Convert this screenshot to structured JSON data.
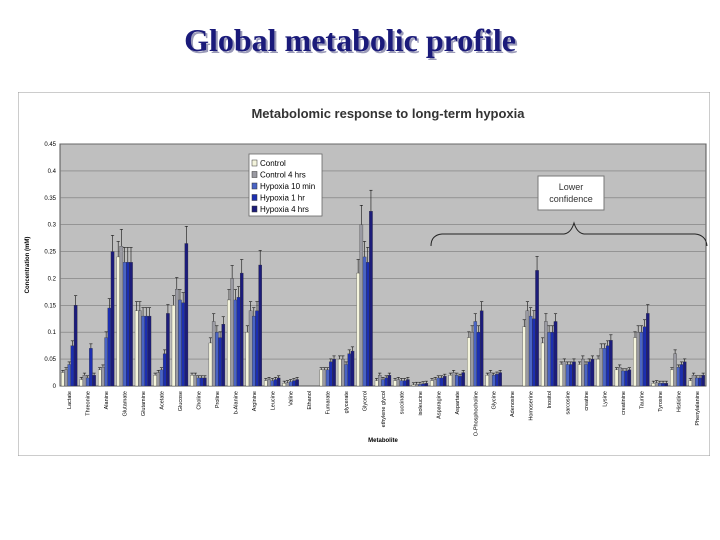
{
  "slide": {
    "title": "Global metabolic profile"
  },
  "chart_data": {
    "type": "bar",
    "title": "Metabolomic response to long-term hypoxia",
    "xlabel": "Metabolite",
    "ylabel": "Concentration (mM)",
    "ylim": [
      0,
      0.45
    ],
    "yticks": [
      0,
      0.05,
      0.1,
      0.15,
      0.2,
      0.25,
      0.3,
      0.35,
      0.4,
      0.45
    ],
    "ytick_labels": [
      "0",
      "0.05",
      "0.1",
      "0.15",
      "0.2",
      "0.25",
      "0.3",
      "0.35",
      "0.4",
      "0.45"
    ],
    "grid": true,
    "legend_position": "top-center",
    "annotation": {
      "text_lines": [
        "Lower",
        "confidence"
      ],
      "spans": "Asparagine to Phenylalanine"
    },
    "colors": [
      "#f4f4dc",
      "#9a9aa2",
      "#4a64c4",
      "#1c2eb0",
      "#1c1c7a"
    ],
    "categories": [
      "Lactate",
      "Threonine",
      "Alanine",
      "Glutamate",
      "Glutamine",
      "Acetate",
      "Glucose",
      "Choline",
      "Proline",
      "b-Alanine",
      "Arginine",
      "Leucine",
      "Valine",
      "Ethanol",
      "Fumarate",
      "glycerate",
      "Glycerol",
      "ethylene glycol",
      "succinate",
      "isoleucine",
      "Asparagine",
      "Aspartate",
      "O-Phosphocholine",
      "Glycine",
      "Adenosine",
      "Homoserine",
      "Inositol",
      "sarcosine",
      "creatine",
      "Lysine",
      "creatinine",
      "Taurine",
      "Tyrosine",
      "Histidine",
      "Phenylalanine"
    ],
    "series": [
      {
        "name": "Control",
        "values": [
          0.025,
          0.012,
          0.03,
          0.24,
          0.14,
          0.02,
          0.15,
          0.02,
          0.08,
          0.16,
          0.1,
          0.01,
          0.005,
          0,
          0.03,
          0.05,
          0.21,
          0.01,
          0.01,
          0.002,
          0.01,
          0.02,
          0.09,
          0.02,
          0,
          0.11,
          0.08,
          0.04,
          0.04,
          0.05,
          0.03,
          0.09,
          0.005,
          0.03,
          0.01
        ]
      },
      {
        "name": "Control 4 hrs",
        "values": [
          0.03,
          0.02,
          0.035,
          0.26,
          0.14,
          0.025,
          0.18,
          0.02,
          0.12,
          0.2,
          0.14,
          0.012,
          0.006,
          0,
          0.03,
          0.05,
          0.3,
          0.02,
          0.012,
          0.003,
          0.012,
          0.025,
          0.1,
          0.025,
          0,
          0.14,
          0.12,
          0.045,
          0.05,
          0.07,
          0.035,
          0.1,
          0.006,
          0.06,
          0.02
        ]
      },
      {
        "name": "Hypoxia 10 min",
        "values": [
          0.04,
          0.015,
          0.09,
          0.23,
          0.13,
          0.03,
          0.16,
          0.015,
          0.1,
          0.16,
          0.13,
          0.01,
          0.008,
          0,
          0.03,
          0.04,
          0.24,
          0.012,
          0.01,
          0.003,
          0.015,
          0.02,
          0.12,
          0.02,
          0,
          0.13,
          0.1,
          0.04,
          0.04,
          0.07,
          0.028,
          0.1,
          0.005,
          0.035,
          0.015
        ]
      },
      {
        "name": "Hypoxia 1 hr",
        "values": [
          0.075,
          0.07,
          0.145,
          0.23,
          0.13,
          0.06,
          0.155,
          0.015,
          0.09,
          0.165,
          0.14,
          0.012,
          0.01,
          0,
          0.045,
          0.06,
          0.23,
          0.015,
          0.01,
          0.004,
          0.015,
          0.018,
          0.1,
          0.022,
          0,
          0.125,
          0.1,
          0.04,
          0.045,
          0.075,
          0.028,
          0.11,
          0.005,
          0.04,
          0.015
        ]
      },
      {
        "name": "Hypoxia 4 hrs",
        "values": [
          0.15,
          0.02,
          0.25,
          0.23,
          0.13,
          0.135,
          0.265,
          0.015,
          0.115,
          0.21,
          0.225,
          0.015,
          0.012,
          0,
          0.05,
          0.065,
          0.325,
          0.02,
          0.012,
          0.005,
          0.018,
          0.025,
          0.14,
          0.025,
          0,
          0.215,
          0.12,
          0.045,
          0.05,
          0.085,
          0.03,
          0.135,
          0.005,
          0.045,
          0.02
        ]
      }
    ]
  }
}
